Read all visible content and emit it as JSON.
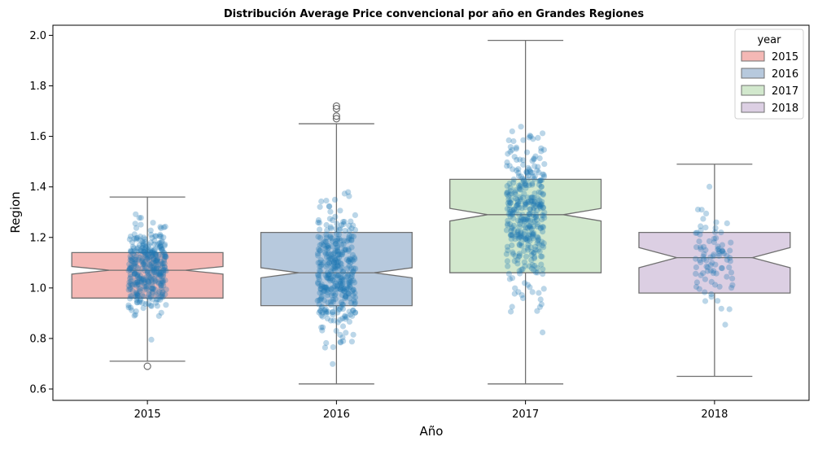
{
  "chart_data": {
    "type": "box",
    "title": "Distribución Average Price convencional por año en Grandes Regiones",
    "xlabel": "Año",
    "ylabel": "Region",
    "ylim": [
      0.555,
      2.04
    ],
    "yticks": [
      0.6,
      0.8,
      1.0,
      1.2,
      1.4,
      1.6,
      1.8,
      2.0
    ],
    "y_tick_labels": [
      "0.6",
      "0.8",
      "1.0",
      "1.2",
      "1.4",
      "1.6",
      "1.8",
      "2.0"
    ],
    "grid": false,
    "notched": true,
    "legend": {
      "title": "year",
      "placement": "top-right",
      "entries": [
        "2015",
        "2016",
        "2017",
        "2018"
      ]
    },
    "series": [
      {
        "category": "2015",
        "color": "#f4b8b5",
        "min": 0.71,
        "q1": 0.96,
        "median": 1.07,
        "q3": 1.14,
        "max": 1.36,
        "notch_low": 1.055,
        "notch_high": 1.085,
        "outliers": [
          0.69
        ],
        "n_points": 360
      },
      {
        "category": "2016",
        "color": "#b7c9dd",
        "min": 0.62,
        "q1": 0.93,
        "median": 1.06,
        "q3": 1.22,
        "max": 1.65,
        "notch_low": 1.04,
        "notch_high": 1.08,
        "outliers": [
          1.67,
          1.68,
          1.71,
          1.72
        ],
        "n_points": 360
      },
      {
        "category": "2017",
        "color": "#d2e8cd",
        "min": 0.62,
        "q1": 1.06,
        "median": 1.29,
        "q3": 1.43,
        "max": 1.98,
        "notch_low": 1.265,
        "notch_high": 1.315,
        "outliers": [],
        "n_points": 360
      },
      {
        "category": "2018",
        "color": "#dccfe3",
        "min": 0.65,
        "q1": 0.98,
        "median": 1.12,
        "q3": 1.22,
        "max": 1.49,
        "notch_low": 1.08,
        "notch_high": 1.16,
        "outliers": [],
        "n_points": 90
      }
    ],
    "strip": {
      "color": "#1f77b4",
      "alpha": 0.3
    }
  }
}
